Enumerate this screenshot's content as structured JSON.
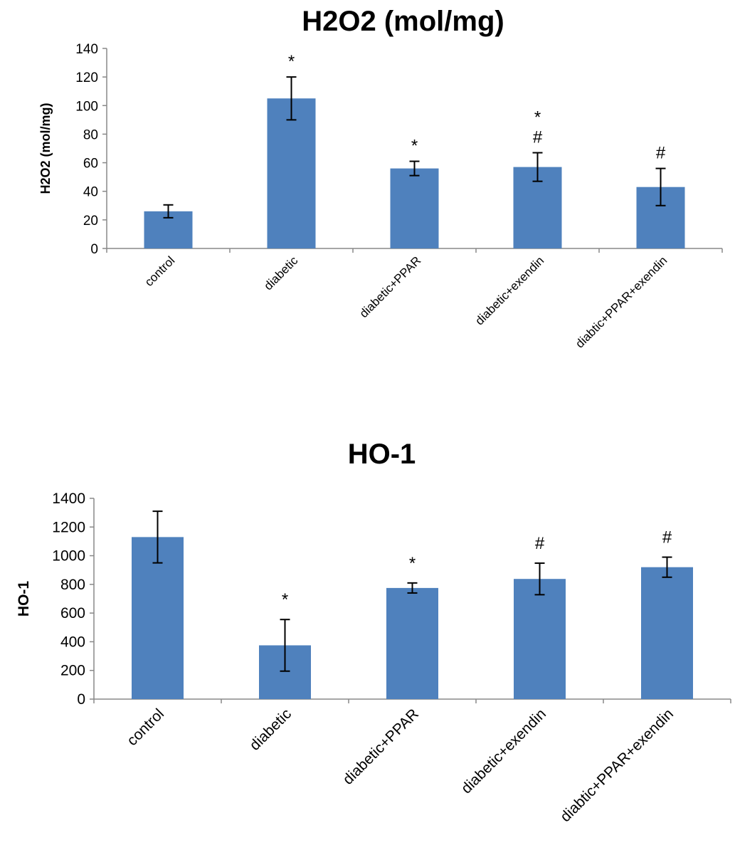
{
  "chart_data": [
    {
      "type": "bar",
      "title": "H2O2 (mol/mg)",
      "ylabel": "H2O2 (mol/mg)",
      "xlabel": "",
      "ylim": [
        0,
        140
      ],
      "yticks": [
        0,
        20,
        40,
        60,
        80,
        100,
        120,
        140
      ],
      "categories": [
        "control",
        "diabetic",
        "diabetic+PPAR",
        "diabetic+exendin",
        "diabtic+PPAR+exendin"
      ],
      "values": [
        26,
        105,
        56,
        57,
        43
      ],
      "errors": [
        4.5,
        15,
        5,
        10,
        13
      ],
      "annotations": [
        [],
        [
          "*"
        ],
        [
          "*"
        ],
        [
          "*",
          "#"
        ],
        [
          "#"
        ]
      ],
      "color": "#4f81bd",
      "grid": false
    },
    {
      "type": "bar",
      "title": "HO-1",
      "ylabel": "HO-1",
      "xlabel": "",
      "ylim": [
        0,
        1400
      ],
      "yticks": [
        0,
        200,
        400,
        600,
        800,
        1000,
        1200,
        1400
      ],
      "categories": [
        "control",
        "diabetic",
        "diabetic+PPAR",
        "diabetic+exendin",
        "diabtic+PPAR+exendin"
      ],
      "values": [
        1130,
        375,
        775,
        838,
        920
      ],
      "errors": [
        180,
        180,
        35,
        110,
        70
      ],
      "annotations": [
        [],
        [
          "*"
        ],
        [
          "*"
        ],
        [
          "#"
        ],
        [
          "#"
        ]
      ],
      "color": "#4f81bd",
      "grid": false
    }
  ]
}
